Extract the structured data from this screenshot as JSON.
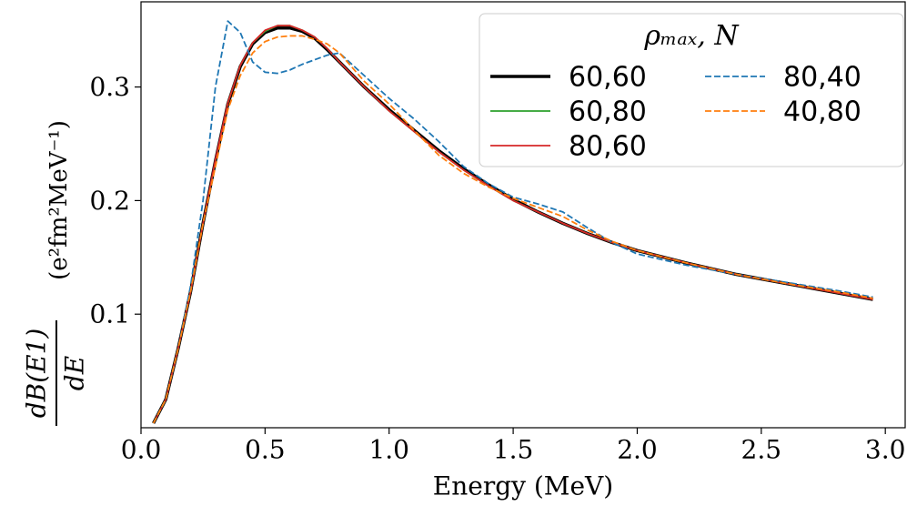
{
  "chart_data": {
    "type": "line",
    "xlabel": "Energy (MeV)",
    "ylabel": {
      "numerator": "dB(E1)",
      "denominator": "dE",
      "unit": "(e²fm²MeV⁻¹)"
    },
    "legend_title": "ρₘₐₓ, N",
    "legend_position": "upper right",
    "legend_columns": 2,
    "xlim": [
      0,
      3.08
    ],
    "xticks": [
      {
        "value": 0,
        "label": "0.0"
      },
      0.5,
      {
        "value": 1,
        "label": "1.0"
      },
      1.5,
      {
        "value": 2,
        "label": "2.0"
      },
      2.5,
      {
        "value": 3,
        "label": "3.0"
      }
    ],
    "ylim": [
      0,
      0.375
    ],
    "yticks": [
      0.1,
      0.2,
      0.3
    ],
    "x": [
      0.05,
      0.1,
      0.15,
      0.2,
      0.25,
      0.3,
      0.35,
      0.4,
      0.45,
      0.5,
      0.55,
      0.6,
      0.65,
      0.7,
      0.75,
      0.8,
      0.9,
      1.0,
      1.1,
      1.2,
      1.3,
      1.4,
      1.5,
      1.6,
      1.7,
      1.8,
      1.9,
      2.0,
      2.2,
      2.4,
      2.6,
      2.8,
      2.95
    ],
    "series": [
      {
        "name": "60,60",
        "color": "#000000",
        "linewidth": 3.5,
        "linestyle": "solid",
        "values": [
          0.004,
          0.025,
          0.07,
          0.12,
          0.18,
          0.235,
          0.285,
          0.318,
          0.338,
          0.348,
          0.352,
          0.352,
          0.349,
          0.343,
          0.333,
          0.322,
          0.3,
          0.28,
          0.262,
          0.244,
          0.228,
          0.214,
          0.201,
          0.19,
          0.18,
          0.171,
          0.163,
          0.156,
          0.145,
          0.135,
          0.127,
          0.119,
          0.113
        ]
      },
      {
        "name": "60,80",
        "color": "#2ca02c",
        "linewidth": 1.8,
        "linestyle": "solid",
        "values": [
          0.004,
          0.025,
          0.07,
          0.12,
          0.18,
          0.235,
          0.286,
          0.319,
          0.339,
          0.349,
          0.354,
          0.354,
          0.35,
          0.344,
          0.334,
          0.322,
          0.3,
          0.279,
          0.261,
          0.243,
          0.227,
          0.213,
          0.2,
          0.19,
          0.18,
          0.171,
          0.163,
          0.156,
          0.145,
          0.135,
          0.127,
          0.119,
          0.113
        ]
      },
      {
        "name": "80,60",
        "color": "#d62728",
        "linewidth": 1.8,
        "linestyle": "solid",
        "values": [
          0.004,
          0.025,
          0.07,
          0.12,
          0.18,
          0.236,
          0.286,
          0.319,
          0.339,
          0.35,
          0.354,
          0.354,
          0.35,
          0.344,
          0.334,
          0.322,
          0.3,
          0.279,
          0.261,
          0.243,
          0.227,
          0.213,
          0.2,
          0.19,
          0.18,
          0.171,
          0.163,
          0.156,
          0.145,
          0.135,
          0.127,
          0.119,
          0.113
        ]
      },
      {
        "name": "80,40",
        "color": "#1f77b4",
        "linewidth": 1.8,
        "linestyle": "dashed",
        "values": [
          0.004,
          0.025,
          0.07,
          0.125,
          0.2,
          0.3,
          0.358,
          0.348,
          0.322,
          0.313,
          0.312,
          0.315,
          0.32,
          0.324,
          0.328,
          0.33,
          0.31,
          0.29,
          0.272,
          0.252,
          0.23,
          0.215,
          0.203,
          0.197,
          0.19,
          0.176,
          0.163,
          0.153,
          0.143,
          0.135,
          0.128,
          0.121,
          0.115
        ]
      },
      {
        "name": "40,80",
        "color": "#ff7f0e",
        "linewidth": 1.8,
        "linestyle": "dashed",
        "values": [
          0.004,
          0.025,
          0.07,
          0.12,
          0.18,
          0.23,
          0.28,
          0.31,
          0.33,
          0.34,
          0.344,
          0.345,
          0.345,
          0.342,
          0.338,
          0.33,
          0.305,
          0.285,
          0.262,
          0.24,
          0.224,
          0.212,
          0.202,
          0.194,
          0.186,
          0.174,
          0.164,
          0.156,
          0.145,
          0.135,
          0.127,
          0.12,
          0.114
        ]
      }
    ]
  }
}
